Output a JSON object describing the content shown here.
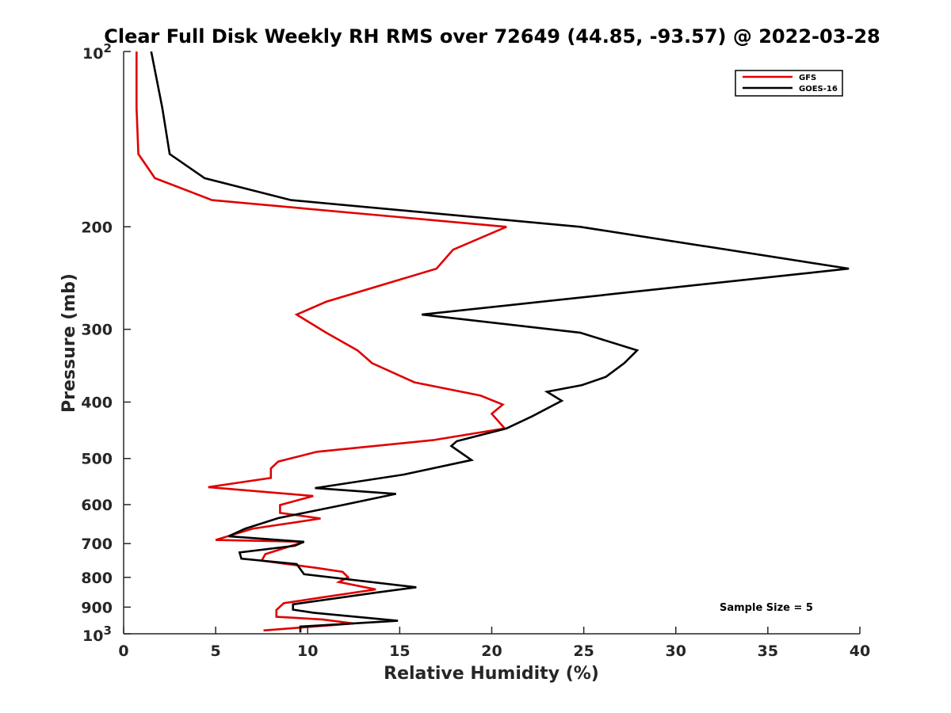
{
  "chart_data": {
    "type": "line",
    "title": "Clear Full Disk Weekly RH RMS over 72649 (44.85, -93.57) @ 2022-03-28",
    "xlabel": "Relative Humidity (%)",
    "ylabel": "Pressure (mb)",
    "xlim": [
      0,
      40
    ],
    "ylim": [
      100,
      1000
    ],
    "y_scale": "log",
    "y_reversed": true,
    "x_ticks": [
      0,
      5,
      10,
      15,
      20,
      25,
      30,
      35,
      40
    ],
    "y_ticks": [
      {
        "value": 100,
        "label": "10",
        "sup": "2"
      },
      {
        "value": 200,
        "label": "200",
        "sup": ""
      },
      {
        "value": 300,
        "label": "300",
        "sup": ""
      },
      {
        "value": 400,
        "label": "400",
        "sup": ""
      },
      {
        "value": 500,
        "label": "500",
        "sup": ""
      },
      {
        "value": 600,
        "label": "600",
        "sup": ""
      },
      {
        "value": 700,
        "label": "700",
        "sup": ""
      },
      {
        "value": 800,
        "label": "800",
        "sup": ""
      },
      {
        "value": 900,
        "label": "900",
        "sup": ""
      },
      {
        "value": 1000,
        "label": "10",
        "sup": "3"
      }
    ],
    "grid": false,
    "legend_position": "top-right",
    "annotation": "Sample Size = 5",
    "series": [
      {
        "name": "GFS",
        "color": "#e00000",
        "points": [
          [
            0.7,
            100
          ],
          [
            0.7,
            125
          ],
          [
            0.8,
            150
          ],
          [
            1.7,
            165
          ],
          [
            4.8,
            180
          ],
          [
            20.8,
            200
          ],
          [
            17.9,
            219
          ],
          [
            17.0,
            236
          ],
          [
            11.0,
            269
          ],
          [
            9.4,
            283
          ],
          [
            11.0,
            304
          ],
          [
            12.7,
            326
          ],
          [
            13.5,
            343
          ],
          [
            15.8,
            370
          ],
          [
            19.4,
            390
          ],
          [
            20.6,
            404
          ],
          [
            20.0,
            419
          ],
          [
            20.7,
            444
          ],
          [
            16.8,
            465
          ],
          [
            10.5,
            487
          ],
          [
            8.4,
            506
          ],
          [
            8.0,
            520
          ],
          [
            8.0,
            540
          ],
          [
            4.6,
            560
          ],
          [
            10.3,
            580
          ],
          [
            8.5,
            601
          ],
          [
            8.5,
            620
          ],
          [
            10.7,
            634
          ],
          [
            7.0,
            660
          ],
          [
            5.0,
            690
          ],
          [
            9.8,
            695
          ],
          [
            7.7,
            730
          ],
          [
            7.5,
            749
          ],
          [
            10.4,
            770
          ],
          [
            11.9,
            783
          ],
          [
            12.2,
            800
          ],
          [
            11.7,
            815
          ],
          [
            13.7,
            839
          ],
          [
            11.0,
            864
          ],
          [
            8.7,
            886
          ],
          [
            8.3,
            910
          ],
          [
            8.3,
            935
          ],
          [
            10.8,
            945
          ],
          [
            12.5,
            960
          ],
          [
            7.6,
            987
          ]
        ]
      },
      {
        "name": "GOES-16",
        "color": "#000000",
        "points": [
          [
            1.5,
            100
          ],
          [
            2.1,
            125
          ],
          [
            2.5,
            150
          ],
          [
            4.4,
            165
          ],
          [
            9.1,
            180
          ],
          [
            24.8,
            200
          ],
          [
            39.4,
            236
          ],
          [
            16.2,
            283
          ],
          [
            24.8,
            304
          ],
          [
            27.9,
            326
          ],
          [
            27.2,
            343
          ],
          [
            26.2,
            362
          ],
          [
            24.9,
            374
          ],
          [
            23.0,
            384
          ],
          [
            23.8,
            398
          ],
          [
            22.2,
            423
          ],
          [
            20.8,
            444
          ],
          [
            18.1,
            467
          ],
          [
            17.8,
            476
          ],
          [
            18.9,
            503
          ],
          [
            15.2,
            533
          ],
          [
            10.4,
            562
          ],
          [
            14.8,
            575
          ],
          [
            11.9,
            601
          ],
          [
            8.4,
            633
          ],
          [
            6.6,
            660
          ],
          [
            5.7,
            680
          ],
          [
            9.8,
            695
          ],
          [
            9.3,
            706
          ],
          [
            6.3,
            725
          ],
          [
            6.4,
            743
          ],
          [
            9.4,
            759
          ],
          [
            9.8,
            790
          ],
          [
            15.9,
            832
          ],
          [
            13.7,
            850
          ],
          [
            9.2,
            890
          ],
          [
            9.2,
            909
          ],
          [
            10.3,
            920
          ],
          [
            14.9,
            950
          ],
          [
            9.6,
            972
          ],
          [
            9.6,
            995
          ]
        ]
      }
    ]
  }
}
